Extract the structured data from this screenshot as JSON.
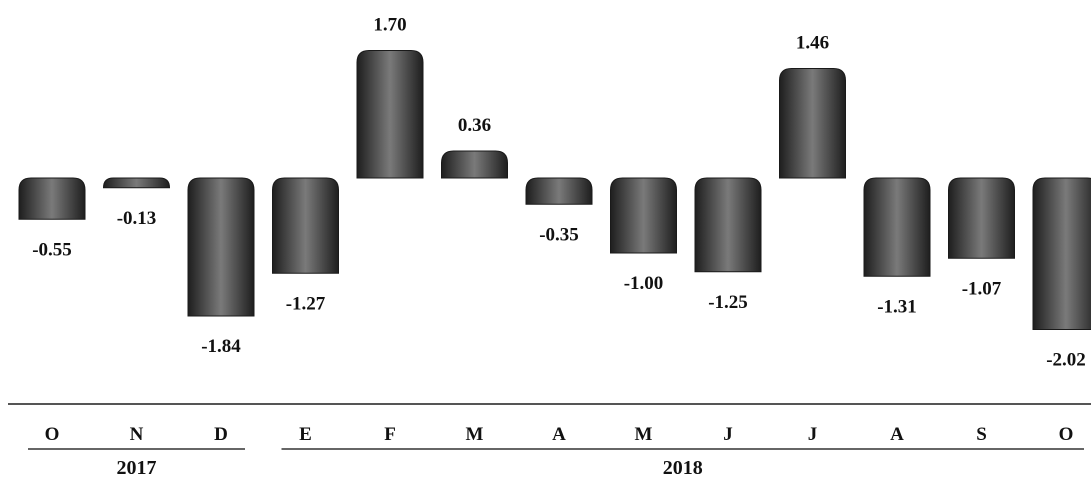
{
  "chart_data": {
    "type": "bar",
    "categories": [
      "O",
      "N",
      "D",
      "E",
      "F",
      "M",
      "A",
      "M",
      "J",
      "J",
      "A",
      "S",
      "O"
    ],
    "values": [
      -0.55,
      -0.13,
      -1.84,
      -1.27,
      1.7,
      0.36,
      -0.35,
      -1.0,
      -1.25,
      1.46,
      -1.31,
      -1.07,
      -2.02
    ],
    "value_labels": [
      "-0.55",
      "-0.13",
      "-1.84",
      "-1.27",
      "1.70",
      "0.36",
      "-0.35",
      "-1.00",
      "-1.25",
      "1.46",
      "-1.31",
      "-1.07",
      "-2.02"
    ],
    "year_groups": [
      {
        "label": "2017",
        "start_index": 0,
        "end_index": 2
      },
      {
        "label": "2018",
        "start_index": 3,
        "end_index": 12
      }
    ],
    "bar_color": "#3a3a3a",
    "grid": false,
    "legend": "none"
  }
}
